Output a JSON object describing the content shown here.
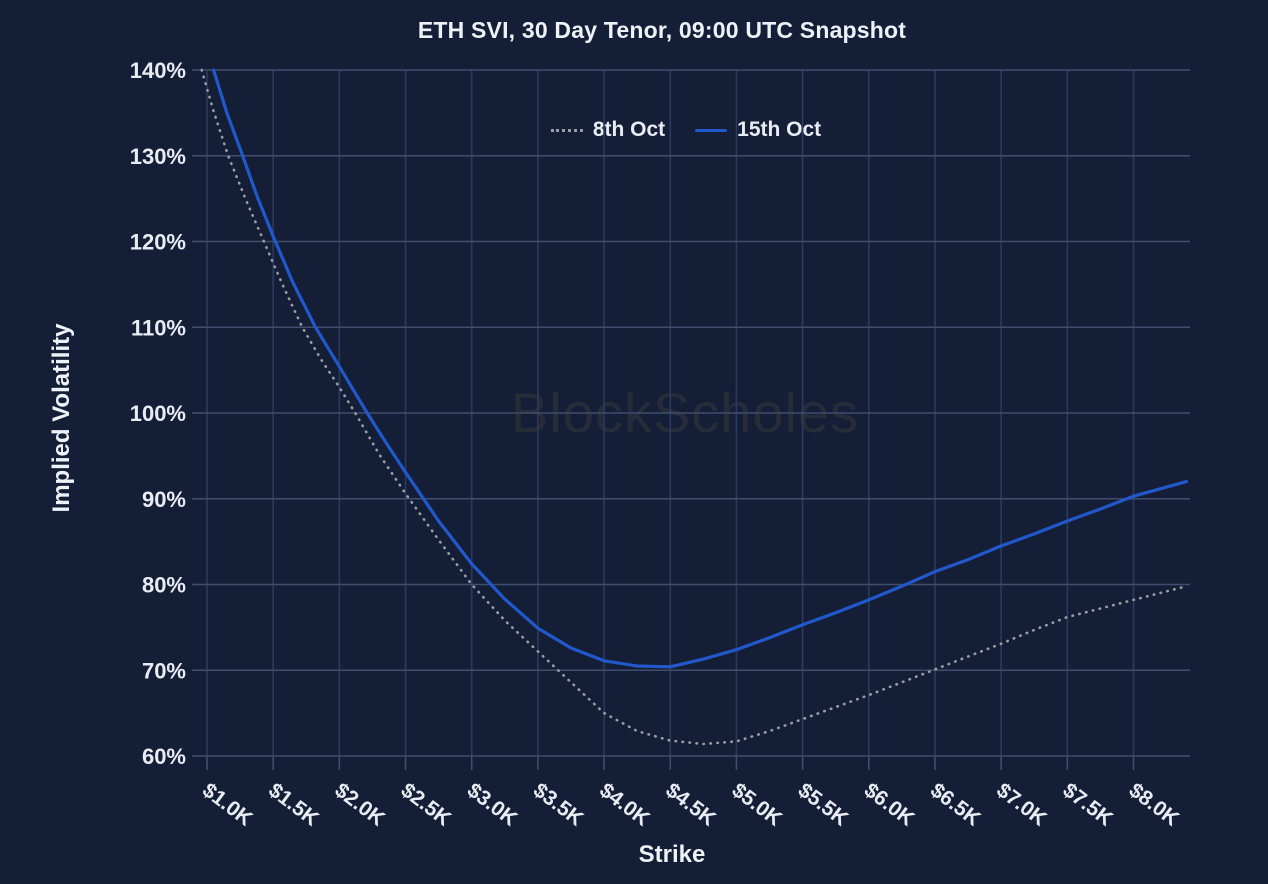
{
  "title": "ETH SVI, 30 Day Tenor, 09:00 UTC Snapshot",
  "watermark": "BlockScholes",
  "colors": {
    "background": "#151e37",
    "text": "#e9ecf2",
    "grid_vertical": "#2b3a60",
    "grid_horizontal": "#3f4d6e",
    "tick_mark": "#3f4d6e",
    "series_8th_oct": "#9a9da3",
    "series_15th_oct": "#2158cb"
  },
  "chart_data": {
    "type": "line",
    "title": "ETH SVI, 30 Day Tenor, 09:00 UTC Snapshot",
    "xlabel": "Strike",
    "ylabel": "Implied Volatility",
    "xlim": [
      0.95,
      8.43
    ],
    "ylim": [
      60,
      140
    ],
    "grid": true,
    "legend_position": "top-center",
    "x_tick_values": [
      1.0,
      1.5,
      2.0,
      2.5,
      3.0,
      3.5,
      4.0,
      4.5,
      5.0,
      5.5,
      6.0,
      6.5,
      7.0,
      7.5,
      8.0
    ],
    "x_tick_labels": [
      "$1.0K",
      "$1.5K",
      "$2.0K",
      "$2.5K",
      "$3.0K",
      "$3.5K",
      "$4.0K",
      "$4.5K",
      "$5.0K",
      "$5.5K",
      "$6.0K",
      "$6.5K",
      "$7.0K",
      "$7.5K",
      "$8.0K"
    ],
    "y_tick_values": [
      60,
      70,
      80,
      90,
      100,
      110,
      120,
      130,
      140
    ],
    "y_tick_labels": [
      "60%",
      "70%",
      "80%",
      "90%",
      "100%",
      "110%",
      "120%",
      "130%",
      "140%"
    ],
    "series": [
      {
        "name": "8th Oct",
        "line": "dotted",
        "color": "#9a9da3",
        "points": [
          [
            0.96,
            140
          ],
          [
            1.05,
            135.2
          ],
          [
            1.16,
            130
          ],
          [
            1.29,
            125
          ],
          [
            1.43,
            120
          ],
          [
            1.57,
            115
          ],
          [
            1.72,
            110
          ],
          [
            1.86,
            106.3
          ],
          [
            2.0,
            103
          ],
          [
            2.12,
            100
          ],
          [
            2.3,
            95.2
          ],
          [
            2.5,
            90.6
          ],
          [
            2.75,
            85.2
          ],
          [
            3.0,
            80
          ],
          [
            3.25,
            75.8
          ],
          [
            3.5,
            72.2
          ],
          [
            3.75,
            68.6
          ],
          [
            4.0,
            65
          ],
          [
            4.25,
            62.9
          ],
          [
            4.5,
            61.8
          ],
          [
            4.75,
            61.4
          ],
          [
            5.0,
            61.7
          ],
          [
            5.25,
            62.9
          ],
          [
            5.5,
            64.3
          ],
          [
            5.75,
            65.7
          ],
          [
            6.0,
            67.1
          ],
          [
            6.25,
            68.6
          ],
          [
            6.5,
            70.1
          ],
          [
            6.75,
            71.6
          ],
          [
            7.0,
            73.1
          ],
          [
            7.25,
            74.7
          ],
          [
            7.5,
            76.2
          ],
          [
            8.0,
            78.2
          ],
          [
            8.4,
            79.8
          ]
        ]
      },
      {
        "name": "15th Oct",
        "line": "solid",
        "color": "#2158cb",
        "points": [
          [
            1.05,
            140
          ],
          [
            1.15,
            135
          ],
          [
            1.27,
            130
          ],
          [
            1.38,
            125.2
          ],
          [
            1.5,
            120.6
          ],
          [
            1.65,
            115.2
          ],
          [
            1.82,
            110
          ],
          [
            2.0,
            105.4
          ],
          [
            2.21,
            100
          ],
          [
            2.35,
            96.6
          ],
          [
            2.5,
            93.1
          ],
          [
            2.75,
            87.4
          ],
          [
            3.0,
            82.4
          ],
          [
            3.25,
            78.3
          ],
          [
            3.5,
            74.9
          ],
          [
            3.75,
            72.6
          ],
          [
            4.0,
            71.1
          ],
          [
            4.25,
            70.5
          ],
          [
            4.5,
            70.4
          ],
          [
            4.75,
            71.3
          ],
          [
            5.0,
            72.4
          ],
          [
            5.25,
            73.8
          ],
          [
            5.5,
            75.3
          ],
          [
            5.75,
            76.7
          ],
          [
            6.0,
            78.2
          ],
          [
            6.25,
            79.8
          ],
          [
            6.5,
            81.5
          ],
          [
            6.75,
            82.9
          ],
          [
            7.0,
            84.5
          ],
          [
            7.25,
            85.9
          ],
          [
            7.5,
            87.4
          ],
          [
            7.75,
            88.8
          ],
          [
            8.0,
            90.3
          ],
          [
            8.4,
            92.0
          ]
        ]
      }
    ]
  }
}
